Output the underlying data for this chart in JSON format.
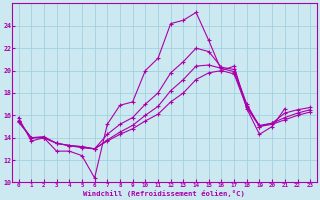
{
  "xlabel": "Windchill (Refroidissement éolien,°C)",
  "background_color": "#cce8f0",
  "grid_color": "#99cce0",
  "line_color": "#aa00aa",
  "xlim": [
    -0.5,
    23.5
  ],
  "ylim": [
    10,
    26
  ],
  "yticks": [
    10,
    12,
    14,
    16,
    18,
    20,
    22,
    24
  ],
  "xticks": [
    0,
    1,
    2,
    3,
    4,
    5,
    6,
    7,
    8,
    9,
    10,
    11,
    12,
    13,
    14,
    15,
    16,
    17,
    18,
    19,
    20,
    21,
    22,
    23
  ],
  "line1_x": [
    0,
    1,
    2,
    3,
    4,
    5,
    6,
    7,
    8,
    9,
    10,
    11,
    12,
    13,
    14,
    15,
    16,
    17,
    18,
    19,
    20,
    21
  ],
  "line1_y": [
    15.8,
    13.7,
    14.0,
    12.8,
    12.8,
    12.4,
    10.4,
    15.2,
    16.9,
    17.2,
    20.0,
    21.1,
    24.2,
    24.5,
    25.2,
    22.7,
    20.0,
    20.4,
    16.6,
    14.3,
    15.0,
    16.6
  ],
  "line2_x": [
    0,
    1,
    2,
    3,
    4,
    5,
    6,
    7,
    8,
    9,
    10,
    11,
    12,
    13,
    14,
    15,
    16,
    17,
    18,
    19,
    20,
    21,
    22,
    23
  ],
  "line2_y": [
    15.5,
    14.0,
    14.1,
    13.5,
    13.3,
    13.1,
    13.0,
    14.3,
    15.2,
    15.8,
    17.0,
    18.0,
    19.8,
    20.8,
    22.0,
    21.7,
    20.3,
    20.1,
    17.0,
    15.0,
    15.3,
    16.2,
    16.5,
    16.7
  ],
  "line3_x": [
    0,
    1,
    2,
    3,
    4,
    5,
    6,
    7,
    8,
    9,
    10,
    11,
    12,
    13,
    14,
    15,
    16,
    17,
    18,
    19,
    20,
    21,
    22,
    23
  ],
  "line3_y": [
    15.5,
    14.0,
    14.0,
    13.5,
    13.3,
    13.2,
    13.0,
    13.8,
    14.5,
    15.1,
    16.0,
    16.8,
    18.2,
    19.2,
    20.4,
    20.5,
    20.2,
    19.9,
    16.8,
    15.1,
    15.3,
    15.8,
    16.2,
    16.5
  ],
  "line4_x": [
    0,
    1,
    2,
    3,
    4,
    5,
    6,
    7,
    8,
    9,
    10,
    11,
    12,
    13,
    14,
    15,
    16,
    17,
    18,
    19,
    20,
    21,
    22,
    23
  ],
  "line4_y": [
    15.4,
    14.0,
    14.0,
    13.5,
    13.3,
    13.2,
    13.0,
    13.7,
    14.3,
    14.8,
    15.5,
    16.1,
    17.2,
    18.0,
    19.2,
    19.8,
    20.0,
    19.7,
    16.7,
    15.0,
    15.2,
    15.6,
    16.0,
    16.3
  ]
}
